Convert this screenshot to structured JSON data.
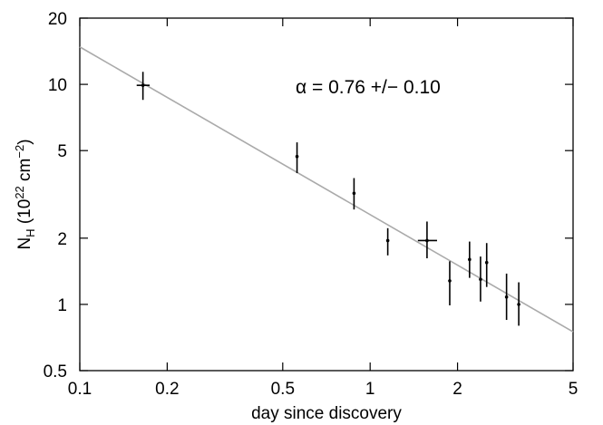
{
  "chart_data": {
    "type": "scatter",
    "xlabel": "day since discovery",
    "ylabel": {
      "base": "N",
      "sub": "H",
      "unit_open": "(10",
      "unit_exp1": "22",
      "unit_mid": " cm",
      "unit_exp2": "−2",
      "unit_close": ")"
    },
    "x_scale": "log",
    "y_scale": "log",
    "xlim": [
      0.1,
      5
    ],
    "ylim": [
      0.5,
      20
    ],
    "x_ticks": [
      0.1,
      0.2,
      0.5,
      1,
      2,
      5
    ],
    "x_tick_labels": [
      "0.1",
      "0.2",
      "0.5",
      "1",
      "2",
      "5"
    ],
    "y_ticks": [
      0.5,
      1,
      2,
      5,
      10,
      20
    ],
    "y_tick_labels": [
      "0.5",
      "1",
      "2",
      "5",
      "10",
      "20"
    ],
    "grid": false,
    "annotation": "α = 0.76 +/− 0.10",
    "fit_line": {
      "x": [
        0.1,
        5
      ],
      "y": [
        14.8,
        0.75
      ],
      "color": "#aaaaaa"
    },
    "points": [
      {
        "x": 0.165,
        "y": 9.9,
        "y_err_low": 8.5,
        "y_err_high": 11.4,
        "x_err_low": 0.157,
        "x_err_high": 0.174
      },
      {
        "x": 0.56,
        "y": 4.7,
        "y_err_low": 3.95,
        "y_err_high": 5.45
      },
      {
        "x": 0.88,
        "y": 3.2,
        "y_err_low": 2.7,
        "y_err_high": 3.75
      },
      {
        "x": 1.15,
        "y": 1.95,
        "y_err_low": 1.67,
        "y_err_high": 2.22
      },
      {
        "x": 1.57,
        "y": 1.95,
        "y_err_low": 1.62,
        "y_err_high": 2.38,
        "x_err_low": 1.46,
        "x_err_high": 1.7
      },
      {
        "x": 1.88,
        "y": 1.28,
        "y_err_low": 0.99,
        "y_err_high": 1.57
      },
      {
        "x": 2.2,
        "y": 1.6,
        "y_err_low": 1.32,
        "y_err_high": 1.93
      },
      {
        "x": 2.4,
        "y": 1.3,
        "y_err_low": 1.03,
        "y_err_high": 1.65
      },
      {
        "x": 2.52,
        "y": 1.55,
        "y_err_low": 1.2,
        "y_err_high": 1.9
      },
      {
        "x": 2.95,
        "y": 1.08,
        "y_err_low": 0.85,
        "y_err_high": 1.38
      },
      {
        "x": 3.25,
        "y": 1.0,
        "y_err_low": 0.8,
        "y_err_high": 1.26
      }
    ]
  }
}
